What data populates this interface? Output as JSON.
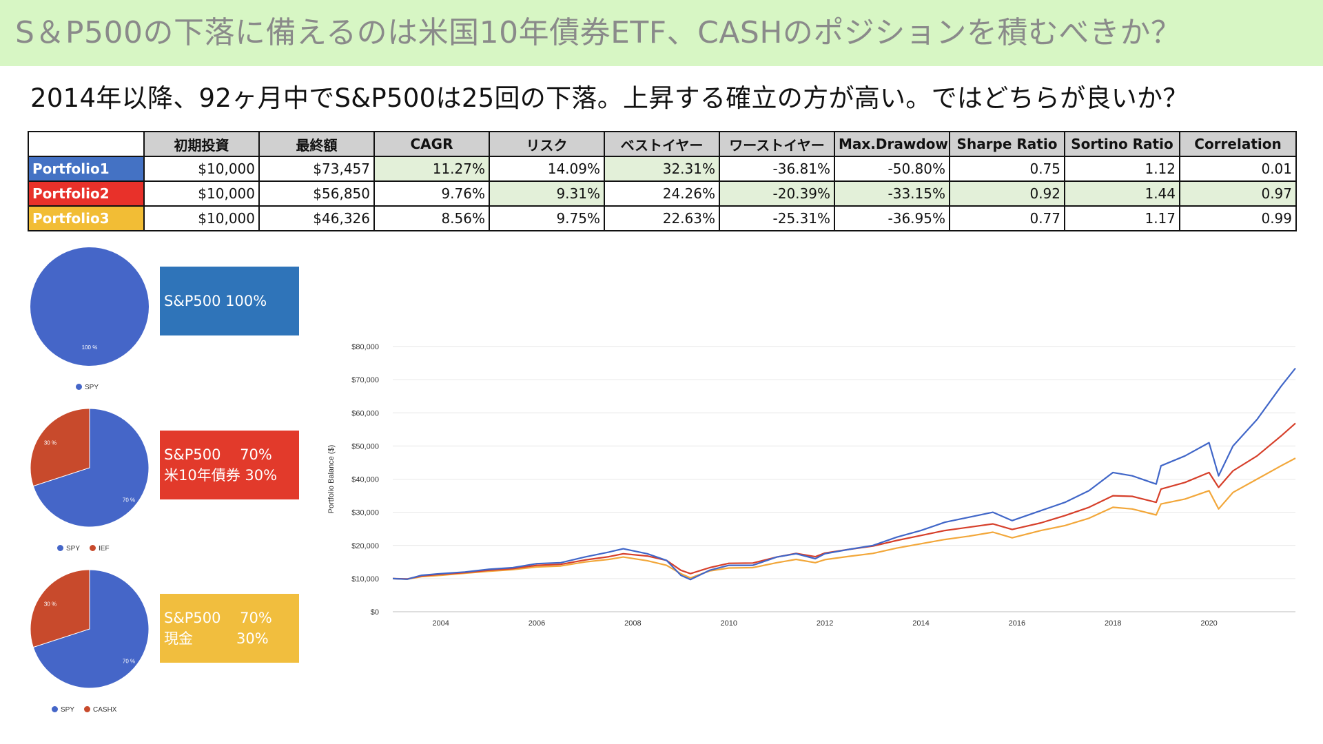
{
  "banner": {
    "title": "S＆P500の下落に備えるのは米国10年債券ETF、CASHのポジションを積むべきか？"
  },
  "subtitle": "2014年以降、92ヶ月中でS&P500は25回の下落。上昇する確立の方が高い。ではどちらが良いか？",
  "table": {
    "headers": [
      "初期投資",
      "最終額",
      "CAGR",
      "リスク",
      "ベストイヤー",
      "ワーストイヤー",
      "Max.Drawdown",
      "Sharpe Ratio",
      "Sortino Ratio",
      "Correlation"
    ],
    "rows": [
      {
        "name": "Portfolio1",
        "color": "#4472c4",
        "values": [
          "$10,000",
          "$73,457",
          "11.27%",
          "14.09%",
          "32.31%",
          "-36.81%",
          "-50.80%",
          "0.75",
          "1.12",
          "0.01"
        ],
        "highlight": [
          false,
          false,
          true,
          false,
          true,
          false,
          false,
          false,
          false,
          false
        ]
      },
      {
        "name": "Portfolio2",
        "color": "#e8312a",
        "values": [
          "$10,000",
          "$56,850",
          "9.76%",
          "9.31%",
          "24.26%",
          "-20.39%",
          "-33.15%",
          "0.92",
          "1.44",
          "0.97"
        ],
        "highlight": [
          false,
          false,
          false,
          true,
          false,
          true,
          true,
          true,
          true,
          true
        ]
      },
      {
        "name": "Portfolio3",
        "color": "#f2bd35",
        "values": [
          "$10,000",
          "$46,326",
          "8.56%",
          "9.75%",
          "22.63%",
          "-25.31%",
          "-36.95%",
          "0.77",
          "1.17",
          "0.99"
        ],
        "highlight": [
          false,
          false,
          false,
          false,
          false,
          false,
          false,
          false,
          false,
          false
        ]
      }
    ],
    "highlight_color": "#e3f0d9"
  },
  "pies": [
    {
      "slices": [
        {
          "name": "SPY",
          "value": 100,
          "color": "#4566c8",
          "label": "100 %"
        }
      ],
      "legend": [
        "SPY"
      ],
      "allocation": {
        "color": "#2f74b9",
        "lines": [
          "S&P500 100%"
        ]
      }
    },
    {
      "slices": [
        {
          "name": "SPY",
          "value": 70,
          "color": "#4566c8",
          "label": "70 %"
        },
        {
          "name": "IEF",
          "value": 30,
          "color": "#c84a2c",
          "label": "30 %"
        }
      ],
      "legend": [
        "SPY",
        "IEF"
      ],
      "allocation": {
        "color": "#e23a2b",
        "lines": [
          "S&P500　 70%",
          "米10年債券 30%"
        ]
      }
    },
    {
      "slices": [
        {
          "name": "SPY",
          "value": 70,
          "color": "#4566c8",
          "label": "70 %"
        },
        {
          "name": "CASHX",
          "value": 30,
          "color": "#c84a2c",
          "label": "30 %"
        }
      ],
      "legend": [
        "SPY",
        "CASHX"
      ],
      "allocation": {
        "color": "#f1be3e",
        "lines": [
          "S&P500　 70%",
          "現金　　　30%"
        ]
      }
    }
  ],
  "chart_data": {
    "type": "line",
    "title": "",
    "xlabel": "",
    "ylabel": "Portfolio Balance ($)",
    "xlim": [
      2003.0,
      2021.8
    ],
    "ylim": [
      0,
      80000
    ],
    "x_ticks": [
      2004,
      2006,
      2008,
      2010,
      2012,
      2014,
      2016,
      2018,
      2020
    ],
    "y_ticks": [
      0,
      10000,
      20000,
      30000,
      40000,
      50000,
      60000,
      70000,
      80000
    ],
    "y_tick_labels": [
      "$0",
      "$10,000",
      "$20,000",
      "$30,000",
      "$40,000",
      "$50,000",
      "$60,000",
      "$70,000",
      "$80,000"
    ],
    "grid": true,
    "legend": "none",
    "x": [
      2003.0,
      2003.3,
      2003.6,
      2004.0,
      2004.5,
      2005.0,
      2005.5,
      2006.0,
      2006.5,
      2007.0,
      2007.5,
      2007.8,
      2008.3,
      2008.7,
      2009.0,
      2009.2,
      2009.6,
      2010.0,
      2010.5,
      2011.0,
      2011.4,
      2011.8,
      2012.0,
      2012.5,
      2013.0,
      2013.5,
      2014.0,
      2014.5,
      2015.0,
      2015.5,
      2015.9,
      2016.5,
      2017.0,
      2017.5,
      2018.0,
      2018.4,
      2018.9,
      2019.0,
      2019.5,
      2020.0,
      2020.2,
      2020.5,
      2021.0,
      2021.5,
      2021.8
    ],
    "series": [
      {
        "color": "#4066c8",
        "values": [
          10000,
          9800,
          11000,
          11500,
          12000,
          12800,
          13300,
          14500,
          14800,
          16500,
          18000,
          19000,
          17500,
          15500,
          11000,
          9700,
          12500,
          14000,
          14000,
          16500,
          17500,
          16000,
          17500,
          18800,
          20000,
          22500,
          24500,
          27000,
          28500,
          30000,
          27500,
          30500,
          33000,
          36500,
          42000,
          41000,
          38500,
          44000,
          47000,
          51000,
          41000,
          50000,
          58000,
          68000,
          73457
        ]
      },
      {
        "color": "#d63f2a",
        "values": [
          10000,
          9900,
          10800,
          11300,
          11800,
          12500,
          13000,
          14000,
          14300,
          15600,
          16600,
          17500,
          16800,
          15500,
          12500,
          11500,
          13300,
          14600,
          14700,
          16500,
          17600,
          16600,
          17700,
          18800,
          19800,
          21500,
          23000,
          24500,
          25500,
          26500,
          24800,
          26800,
          29000,
          31500,
          35000,
          34800,
          33000,
          37000,
          39000,
          42000,
          37500,
          42500,
          47000,
          53000,
          56850
        ]
      },
      {
        "color": "#f2a73a",
        "values": [
          10000,
          9800,
          10600,
          11000,
          11600,
          12200,
          12700,
          13500,
          13800,
          15000,
          15800,
          16500,
          15400,
          14000,
          11500,
          10200,
          12300,
          13200,
          13300,
          14800,
          15800,
          14800,
          15700,
          16700,
          17600,
          19200,
          20500,
          21800,
          22800,
          24000,
          22300,
          24500,
          26000,
          28200,
          31500,
          31000,
          29200,
          32500,
          34000,
          36500,
          31000,
          36000,
          40000,
          44000,
          46326
        ]
      }
    ]
  }
}
